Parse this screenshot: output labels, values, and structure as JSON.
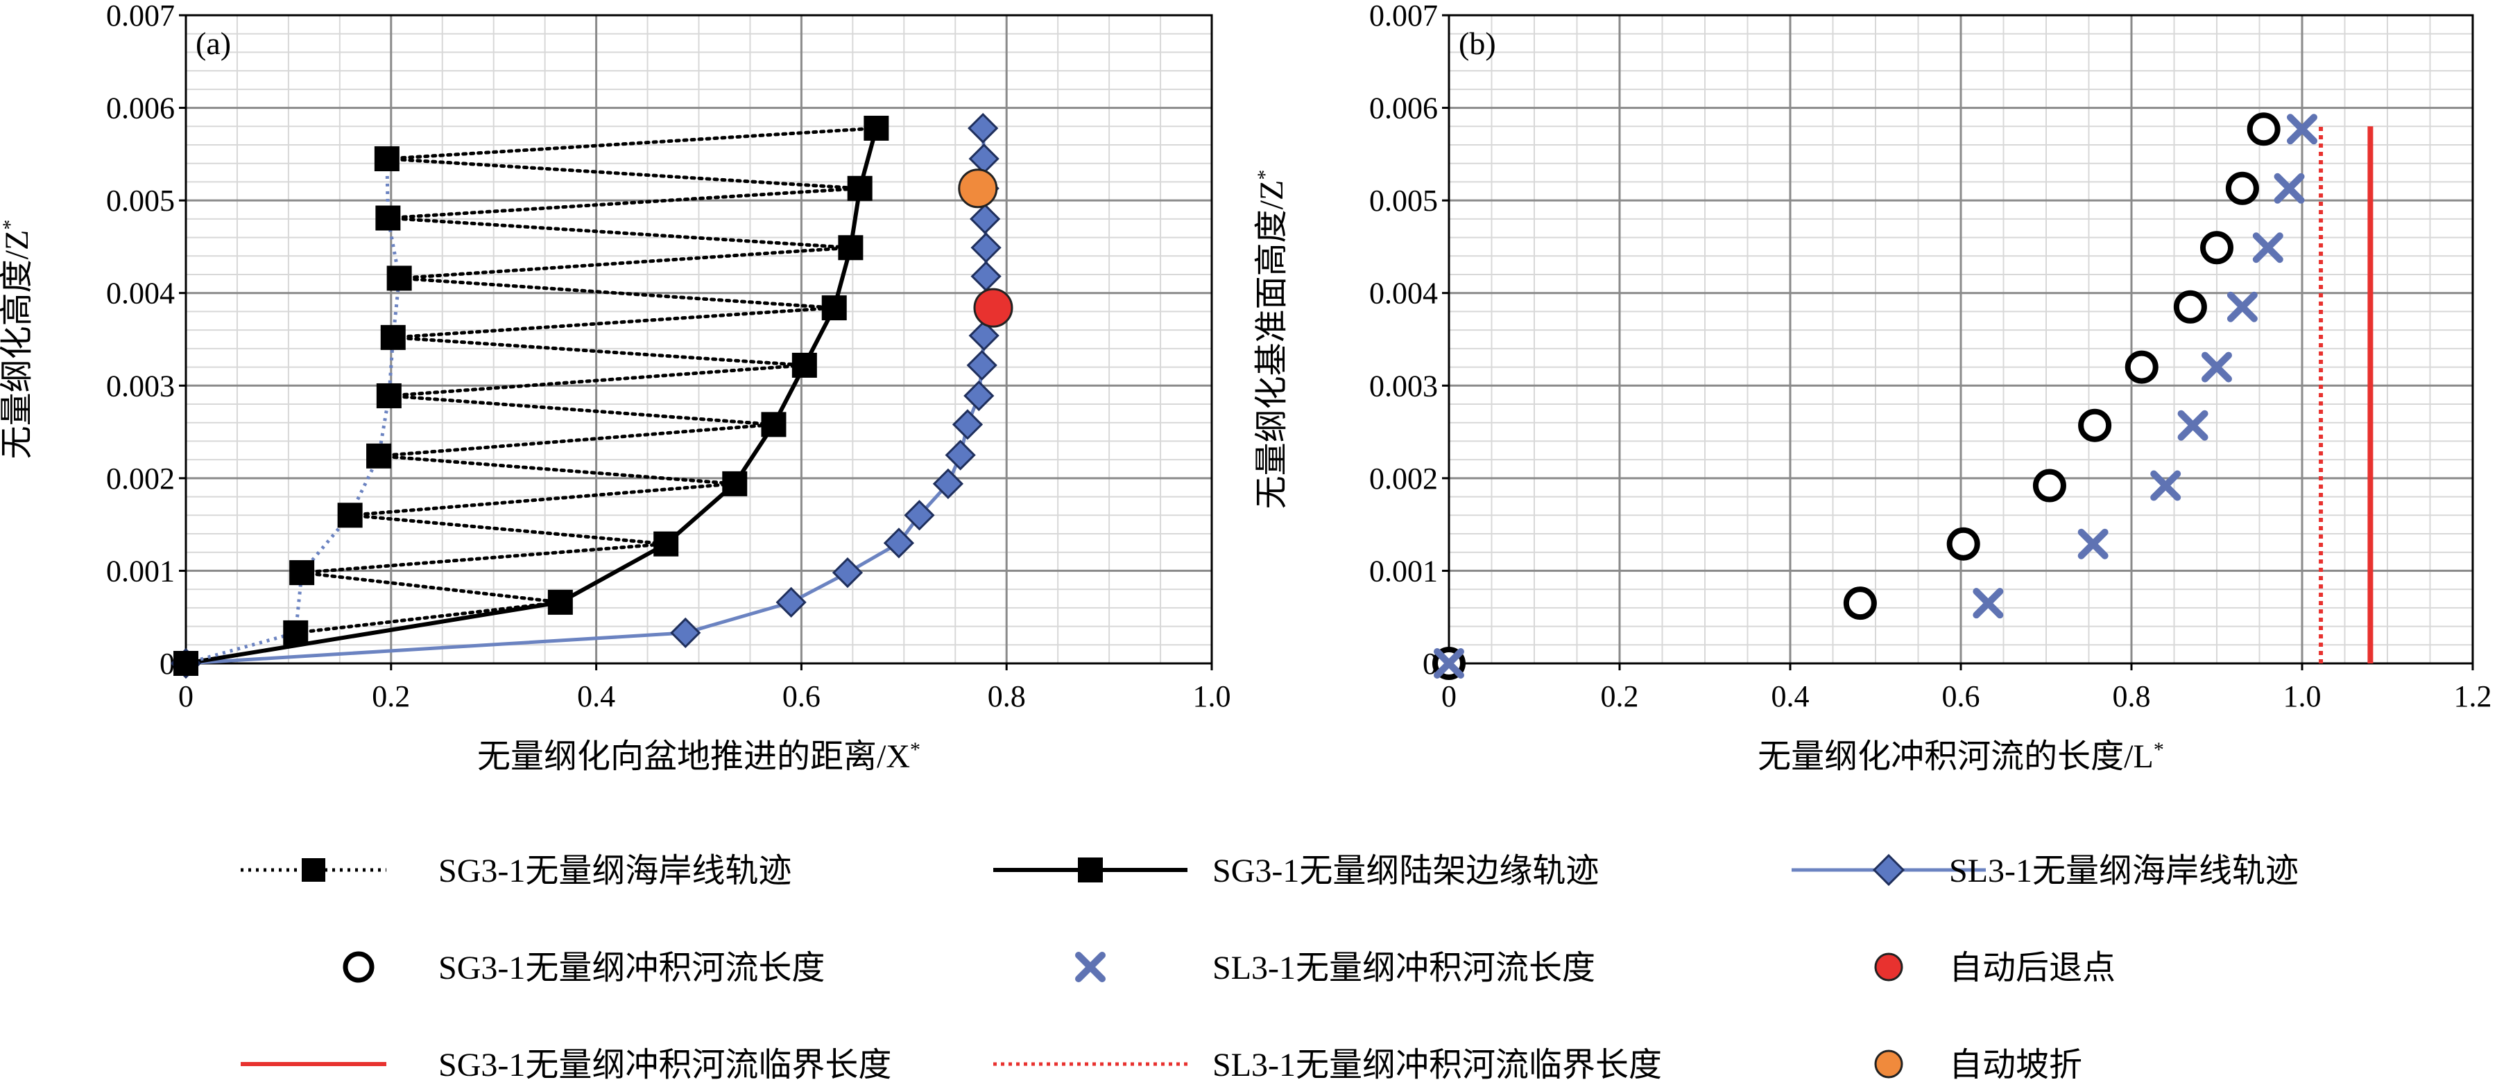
{
  "chart_data": [
    {
      "type": "line",
      "panel_label": "(a)",
      "xlabel": "无量纲化向盆地推进的距离/X",
      "xlabel_sup": "*",
      "ylabel": "无量纲化高度/Z",
      "ylabel_sup": "*",
      "xlim": [
        0,
        1.0
      ],
      "ylim": [
        0,
        0.007
      ],
      "x_ticks": [
        0,
        0.2,
        0.4,
        0.6,
        0.8,
        1.0
      ],
      "x_tick_labels": [
        "0",
        "0.2",
        "0.4",
        "0.6",
        "0.8",
        "1.0"
      ],
      "y_ticks": [
        0,
        0.001,
        0.002,
        0.003,
        0.004,
        0.005,
        0.006,
        0.007
      ],
      "y_tick_labels": [
        "0",
        "0.001",
        "0.002",
        "0.003",
        "0.004",
        "0.005",
        "0.006",
        "0.007"
      ],
      "grid": true,
      "series": [
        {
          "name": "SG3-1无量纲海岸线轨迹",
          "style": "dotted-square",
          "color": "#000000",
          "x": [
            0,
            0.107,
            0.113,
            0.16,
            0.188,
            0.198,
            0.202,
            0.208,
            0.197,
            0.196
          ],
          "y": [
            0,
            0.00033,
            0.00098,
            0.0016,
            0.00224,
            0.00289,
            0.00352,
            0.00416,
            0.00481,
            0.00545
          ]
        },
        {
          "name": "SG3-1无量纲陆架边缘轨迹",
          "style": "solid-square",
          "color": "#000000",
          "x": [
            0,
            0.365,
            0.468,
            0.535,
            0.573,
            0.603,
            0.632,
            0.648,
            0.657,
            0.673
          ],
          "y": [
            0,
            0.00066,
            0.00129,
            0.00194,
            0.00258,
            0.00322,
            0.00384,
            0.00449,
            0.00513,
            0.00578
          ]
        },
        {
          "name": "SL3-1无量纲海岸线轨迹",
          "style": "solid-diamond",
          "color": "#6b83c1",
          "x": [
            0,
            0.487,
            0.59,
            0.645,
            0.695,
            0.715,
            0.743,
            0.755,
            0.762,
            0.773,
            0.776,
            0.778,
            0.78,
            0.78,
            0.779,
            0.778,
            0.778,
            0.777
          ],
          "y": [
            0,
            0.00033,
            0.00066,
            0.00098,
            0.0013,
            0.0016,
            0.00194,
            0.00225,
            0.00258,
            0.00289,
            0.00322,
            0.00354,
            0.00418,
            0.00449,
            0.0048,
            0.00513,
            0.00545,
            0.00578
          ]
        }
      ],
      "links": {
        "style": "dotted",
        "pairs": [
          [
            [
              0.107,
              0.00033
            ],
            [
              0.365,
              0.00066
            ]
          ],
          [
            [
              0.113,
              0.00098
            ],
            [
              0.365,
              0.00066
            ]
          ],
          [
            [
              0.113,
              0.00098
            ],
            [
              0.468,
              0.00129
            ]
          ],
          [
            [
              0.16,
              0.0016
            ],
            [
              0.468,
              0.00129
            ]
          ],
          [
            [
              0.16,
              0.0016
            ],
            [
              0.535,
              0.00194
            ]
          ],
          [
            [
              0.188,
              0.00224
            ],
            [
              0.535,
              0.00194
            ]
          ],
          [
            [
              0.188,
              0.00224
            ],
            [
              0.573,
              0.00258
            ]
          ],
          [
            [
              0.198,
              0.00289
            ],
            [
              0.573,
              0.00258
            ]
          ],
          [
            [
              0.198,
              0.00289
            ],
            [
              0.603,
              0.00322
            ]
          ],
          [
            [
              0.202,
              0.00352
            ],
            [
              0.603,
              0.00322
            ]
          ],
          [
            [
              0.202,
              0.00352
            ],
            [
              0.632,
              0.00384
            ]
          ],
          [
            [
              0.208,
              0.00416
            ],
            [
              0.632,
              0.00384
            ]
          ],
          [
            [
              0.208,
              0.00416
            ],
            [
              0.648,
              0.00449
            ]
          ],
          [
            [
              0.197,
              0.00481
            ],
            [
              0.648,
              0.00449
            ]
          ],
          [
            [
              0.197,
              0.00481
            ],
            [
              0.657,
              0.00513
            ]
          ],
          [
            [
              0.196,
              0.00545
            ],
            [
              0.657,
              0.00513
            ]
          ],
          [
            [
              0.196,
              0.00545
            ],
            [
              0.673,
              0.00578
            ]
          ]
        ]
      },
      "special_points": [
        {
          "name": "自动坡折",
          "color": "#f08a3c",
          "x": 0.772,
          "y": 0.00513
        },
        {
          "name": "自动后退点",
          "color": "#e8322f",
          "x": 0.787,
          "y": 0.00384
        }
      ]
    },
    {
      "type": "scatter",
      "panel_label": "(b)",
      "xlabel": "无量纲化冲积河流的长度/L",
      "xlabel_sup": "*",
      "ylabel": "无量纲化基准面高度/Z",
      "ylabel_sup": "*",
      "xlim": [
        0,
        1.2
      ],
      "ylim": [
        0,
        0.007
      ],
      "x_ticks": [
        0,
        0.2,
        0.4,
        0.6,
        0.8,
        1.0,
        1.2
      ],
      "x_tick_labels": [
        "0",
        "0.2",
        "0.4",
        "0.6",
        "0.8",
        "1.0",
        "1.2"
      ],
      "y_ticks": [
        0,
        0.001,
        0.002,
        0.003,
        0.004,
        0.005,
        0.006,
        0.007
      ],
      "y_tick_labels": [
        "0",
        "0.001",
        "0.002",
        "0.003",
        "0.004",
        "0.005",
        "0.006",
        "0.007"
      ],
      "grid": true,
      "series": [
        {
          "name": "SG3-1无量纲冲积河流长度",
          "marker": "circle",
          "color": "#000000",
          "x": [
            0,
            0.482,
            0.603,
            0.704,
            0.757,
            0.812,
            0.869,
            0.9,
            0.93,
            0.955
          ],
          "y": [
            0,
            0.00065,
            0.00129,
            0.00192,
            0.00257,
            0.0032,
            0.00385,
            0.00449,
            0.00513,
            0.00577
          ]
        },
        {
          "name": "SL3-1无量纲冲积河流长度",
          "marker": "x",
          "color": "#5f73b3",
          "x": [
            0,
            0.632,
            0.755,
            0.84,
            0.872,
            0.9,
            0.93,
            0.96,
            0.985,
            1.0
          ],
          "y": [
            0,
            0.00065,
            0.00129,
            0.00192,
            0.00257,
            0.0032,
            0.00385,
            0.00449,
            0.00513,
            0.00577
          ]
        }
      ],
      "critical_lines": [
        {
          "name": "SG3-1无量纲冲积河流临界长度",
          "style": "solid",
          "color": "#e8322f",
          "x": 1.08,
          "y_range": [
            0,
            0.0058
          ]
        },
        {
          "name": "SL3-1无量纲冲积河流临界长度",
          "style": "dotted",
          "color": "#e8322f",
          "x": 1.022,
          "y_range": [
            0,
            0.0058
          ]
        }
      ]
    }
  ],
  "legend": [
    {
      "label": "SG3-1无量纲海岸线轨迹",
      "symbol": "dotted-square"
    },
    {
      "label": "SG3-1无量纲陆架边缘轨迹",
      "symbol": "solid-square"
    },
    {
      "label": "SL3-1无量纲海岸线轨迹",
      "symbol": "solid-diamond"
    },
    {
      "label": "SG3-1无量纲冲积河流长度",
      "symbol": "open-circle"
    },
    {
      "label": "SL3-1无量纲冲积河流长度",
      "symbol": "blue-x"
    },
    {
      "label": "自动后退点",
      "symbol": "red-dot"
    },
    {
      "label": "SG3-1无量纲冲积河流临界长度",
      "symbol": "red-solid-line"
    },
    {
      "label": "SL3-1无量纲冲积河流临界长度",
      "symbol": "red-dotted-line"
    },
    {
      "label": "自动坡折",
      "symbol": "orange-dot"
    }
  ],
  "colors": {
    "grid_major": "#8a8a8a",
    "grid_minor": "#d8d8d8",
    "black": "#000000",
    "blue_line": "#6b83c1",
    "blue_marker": "#5b78c2",
    "blue_x": "#5f73b3",
    "red": "#e8322f",
    "orange": "#f08a3c"
  }
}
